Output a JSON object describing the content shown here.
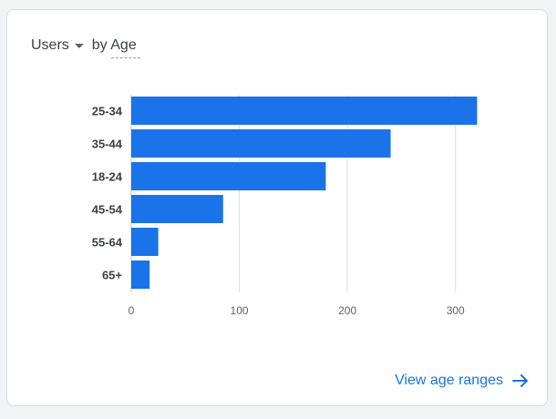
{
  "header": {
    "metric": "Users",
    "dimension_label": "by Age"
  },
  "footer": {
    "link_label": "View age ranges"
  },
  "colors": {
    "bar": "#1a73e8",
    "grid": "#e0e0e0",
    "axis": "#bdc1c6",
    "label": "#3c4043",
    "tick": "#5f6368"
  },
  "icons": {
    "metric_dropdown": "caret-down-icon",
    "footer_link": "arrow-right-icon"
  },
  "chart_data": {
    "type": "bar",
    "orientation": "horizontal",
    "categories": [
      "25-34",
      "35-44",
      "18-24",
      "45-54",
      "55-64",
      "65+"
    ],
    "values": [
      320,
      240,
      180,
      85,
      25,
      17
    ],
    "xlim": [
      0,
      350
    ],
    "xticks": [
      0,
      100,
      200,
      300
    ],
    "grid": true
  }
}
